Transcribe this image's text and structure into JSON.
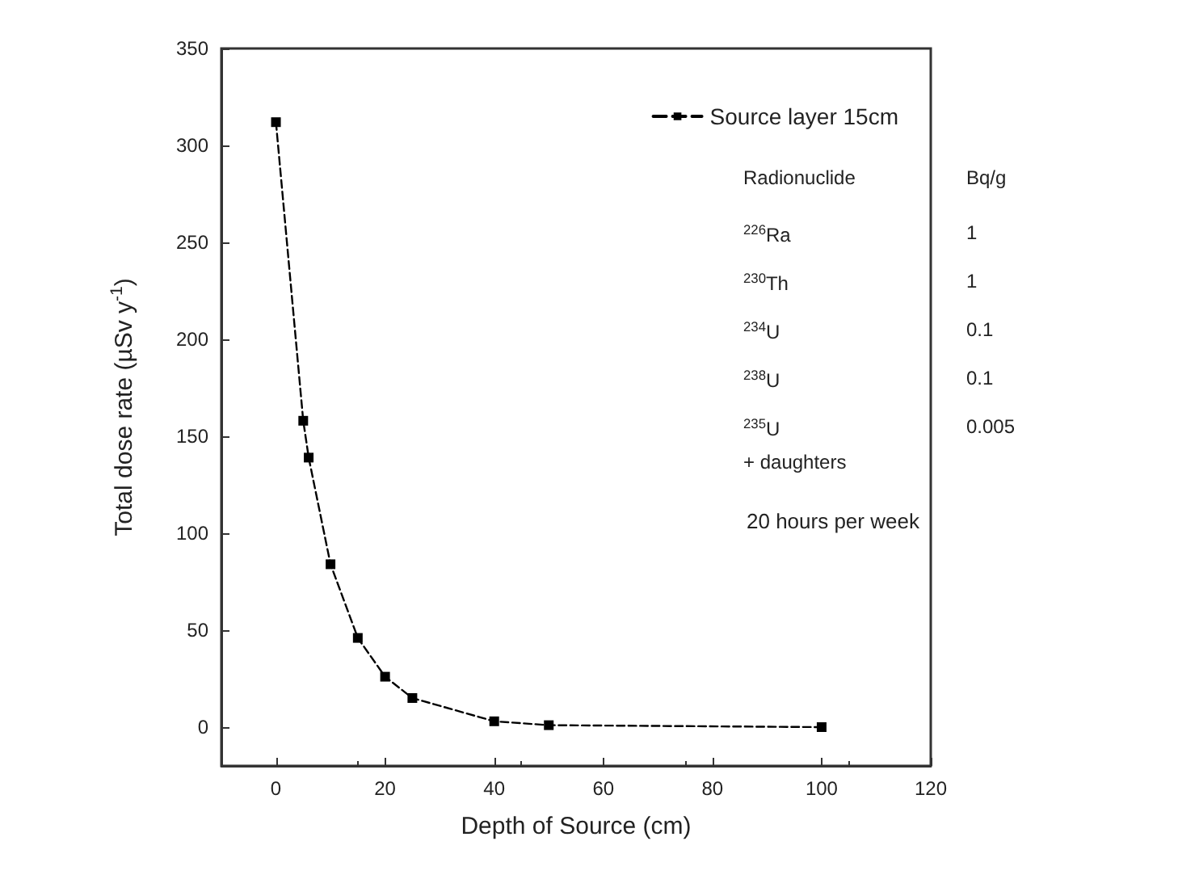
{
  "chart_data": {
    "type": "line",
    "xlabel": "Depth of Source (cm)",
    "ylabel": "Total dose rate (µSv y$^{-1}$)",
    "x": [
      0,
      5,
      6,
      10,
      15,
      20,
      25,
      40,
      50,
      100
    ],
    "series": [
      {
        "name": "Source layer 15cm",
        "color": "#000000",
        "values": [
          312,
          158,
          139,
          84,
          46,
          26,
          15,
          3,
          1,
          0
        ]
      }
    ],
    "xlim": [
      -10,
      120
    ],
    "xticks": [
      0,
      20,
      40,
      60,
      80,
      100,
      120
    ],
    "ylim": [
      -20,
      350
    ],
    "yticks": [
      0,
      50,
      100,
      150,
      200,
      250,
      300,
      350
    ],
    "grid": false,
    "legend": "top right",
    "marker": "square",
    "line_style": "dashed",
    "annotations": [
      "Radionuclide",
      "Bq/g",
      "$^{226}$Ra",
      "1",
      "$^{230}$Th",
      "1",
      "$^{234}$U",
      "0.1",
      "$^{238}$U",
      "0.1",
      "$^{235}$U",
      "0.005",
      "+ daughters",
      "20 hours per week"
    ]
  }
}
